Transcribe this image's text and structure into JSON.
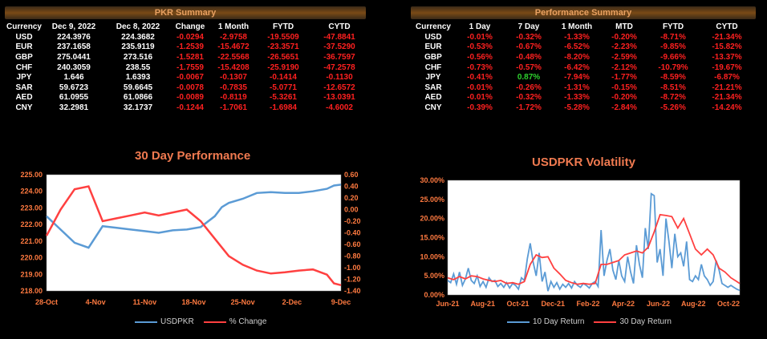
{
  "pkr_summary": {
    "title": "PKR Summary",
    "headers": [
      "Currency",
      "Dec 9, 2022",
      "Dec 8, 2022",
      "Change",
      "1 Month",
      "FYTD",
      "CYTD"
    ],
    "rows": [
      [
        "USD",
        "224.3976",
        "224.3682",
        "-0.0294",
        "-2.9758",
        "-19.5509",
        "-47.8841"
      ],
      [
        "EUR",
        "237.1658",
        "235.9119",
        "-1.2539",
        "-15.4672",
        "-23.3571",
        "-37.5290"
      ],
      [
        "GBP",
        "275.0441",
        "273.516",
        "-1.5281",
        "-22.5568",
        "-26.5651",
        "-36.7597"
      ],
      [
        "CHF",
        "240.3059",
        "238.55",
        "-1.7559",
        "-15.4208",
        "-25.9190",
        "-47.2578"
      ],
      [
        "JPY",
        "1.646",
        "1.6393",
        "-0.0067",
        "-0.1307",
        "-0.1414",
        "-0.1130"
      ],
      [
        "SAR",
        "59.6723",
        "59.6645",
        "-0.0078",
        "-0.7835",
        "-5.0771",
        "-12.6572"
      ],
      [
        "AED",
        "61.0955",
        "61.0866",
        "-0.0089",
        "-0.8119",
        "-5.3261",
        "-13.0391"
      ],
      [
        "CNY",
        "32.2981",
        "32.1737",
        "-0.1244",
        "-1.7061",
        "-1.6984",
        "-4.6002"
      ]
    ]
  },
  "performance_summary": {
    "title": "Performance Summary",
    "headers": [
      "Currency",
      "1 Day",
      "7 Day",
      "1 Month",
      "MTD",
      "FYTD",
      "CYTD"
    ],
    "rows": [
      [
        "USD",
        "-0.01%",
        "-0.32%",
        "-1.33%",
        "-0.20%",
        "-8.71%",
        "-21.34%"
      ],
      [
        "EUR",
        "-0.53%",
        "-0.67%",
        "-6.52%",
        "-2.23%",
        "-9.85%",
        "-15.82%"
      ],
      [
        "GBP",
        "-0.56%",
        "-0.48%",
        "-8.20%",
        "-2.59%",
        "-9.66%",
        "-13.37%"
      ],
      [
        "CHF",
        "-0.73%",
        "-0.57%",
        "-6.42%",
        "-2.12%",
        "-10.79%",
        "-19.67%"
      ],
      [
        "JPY",
        "-0.41%",
        "0.87%",
        "-7.94%",
        "-1.77%",
        "-8.59%",
        "-6.87%"
      ],
      [
        "SAR",
        "-0.01%",
        "-0.26%",
        "-1.31%",
        "-0.15%",
        "-8.51%",
        "-21.21%"
      ],
      [
        "AED",
        "-0.01%",
        "-0.32%",
        "-1.33%",
        "-0.20%",
        "-8.72%",
        "-21.34%"
      ],
      [
        "CNY",
        "-0.39%",
        "-1.72%",
        "-5.28%",
        "-2.84%",
        "-5.26%",
        "-14.24%"
      ]
    ]
  },
  "colors": {
    "accent": "#f07a50",
    "negative": "#ff2020",
    "positive": "#2ed22e",
    "blue_series": "#5b9bd5",
    "red_series": "#ff4040"
  },
  "chart_data": [
    {
      "type": "line",
      "title": "30 Day Performance",
      "x_ticks": [
        "28-Oct",
        "4-Nov",
        "11-Nov",
        "18-Nov",
        "25-Nov",
        "2-Dec",
        "9-Dec"
      ],
      "ylim": [
        218.0,
        225.0
      ],
      "y_ticks": [
        "218.00",
        "219.00",
        "220.00",
        "221.00",
        "222.00",
        "223.00",
        "224.00",
        "225.00"
      ],
      "y2lim": [
        -1.4,
        0.6
      ],
      "y2_ticks": [
        "-1.40",
        "-1.20",
        "-1.00",
        "-0.80",
        "-0.60",
        "-0.40",
        "-0.20",
        "0.00",
        "0.20",
        "0.40",
        "0.60"
      ],
      "series": [
        {
          "name": "USDPKR",
          "axis": "left",
          "color": "#5b9bd5",
          "x": [
            0,
            2,
            4,
            6,
            8,
            10,
            12,
            14,
            16,
            18,
            20,
            22,
            24,
            25,
            26,
            28,
            30,
            32,
            34,
            36,
            38,
            40,
            41,
            42
          ],
          "values": [
            222.5,
            221.7,
            220.9,
            220.6,
            221.9,
            221.8,
            221.7,
            221.6,
            221.5,
            221.65,
            221.7,
            221.85,
            222.5,
            223.05,
            223.3,
            223.55,
            223.9,
            223.95,
            223.9,
            223.9,
            224.0,
            224.15,
            224.35,
            224.4
          ]
        },
        {
          "name": "% Change",
          "axis": "right",
          "color": "#ff4040",
          "x": [
            0,
            2,
            4,
            6,
            8,
            10,
            12,
            14,
            16,
            18,
            20,
            22,
            24,
            26,
            28,
            30,
            32,
            34,
            36,
            38,
            40,
            41,
            42
          ],
          "values": [
            -0.45,
            0.0,
            0.35,
            0.4,
            -0.2,
            -0.15,
            -0.1,
            -0.05,
            -0.1,
            -0.05,
            0.0,
            -0.2,
            -0.5,
            -0.8,
            -0.95,
            -1.05,
            -1.1,
            -1.08,
            -1.05,
            -1.03,
            -1.12,
            -1.27,
            -1.3
          ]
        }
      ]
    },
    {
      "type": "line",
      "title": "USDPKR Volatility",
      "x_ticks": [
        "Jun-21",
        "Aug-21",
        "Oct-21",
        "Dec-21",
        "Feb-22",
        "Apr-22",
        "Jun-22",
        "Aug-22",
        "Oct-22"
      ],
      "ylim": [
        0,
        30
      ],
      "y_ticks": [
        "0.00%",
        "5.00%",
        "10.00%",
        "15.00%",
        "20.00%",
        "25.00%",
        "30.00%"
      ],
      "series": [
        {
          "name": "10 Day Return",
          "color": "#5b9bd5",
          "x": [
            0,
            0.3,
            0.6,
            0.9,
            1.2,
            1.5,
            1.8,
            2.1,
            2.4,
            2.7,
            3.0,
            3.3,
            3.6,
            3.9,
            4.2,
            4.5,
            4.8,
            5.1,
            5.4,
            5.7,
            6.0,
            6.3,
            6.6,
            6.9,
            7.2,
            7.5,
            7.8,
            8.1,
            8.4,
            8.7,
            9.0,
            9.3,
            9.6,
            9.9,
            10.2,
            10.5,
            10.8,
            11.1,
            11.4,
            11.7,
            12.0,
            12.3,
            12.6,
            12.9,
            13.2,
            13.5,
            13.8,
            14.1,
            14.4,
            14.7,
            15.0,
            15.3,
            15.6,
            15.9,
            16.2,
            16.5,
            16.8,
            17.1,
            17.4,
            17.7,
            18.0,
            18.3,
            18.6,
            18.9,
            19.2,
            19.5,
            19.8,
            20.1,
            20.4,
            20.7,
            21.0,
            21.3,
            21.6,
            21.9,
            22.2,
            22.5,
            22.8,
            23.1,
            23.4,
            23.7,
            24.0,
            24.3,
            24.6,
            24.9,
            25.2,
            25.5,
            25.8,
            26.1,
            26.4,
            26.7,
            27.0,
            27.3,
            27.6,
            27.9,
            28.2,
            28.5,
            28.8,
            29.1,
            29.4,
            29.7
          ],
          "values": [
            3.8,
            3.2,
            5.5,
            2.8,
            6.0,
            2.5,
            4.2,
            7.0,
            3.8,
            3.0,
            5.0,
            2.2,
            3.5,
            2.0,
            4.5,
            3.5,
            3.8,
            2.2,
            3.0,
            2.0,
            3.2,
            1.8,
            3.0,
            2.5,
            1.5,
            4.5,
            3.8,
            9.5,
            13.5,
            8.5,
            5.0,
            11.0,
            3.5,
            6.0,
            1.0,
            3.5,
            2.0,
            3.2,
            1.5,
            2.8,
            2.0,
            3.0,
            1.8,
            3.5,
            2.5,
            2.0,
            3.0,
            2.5,
            1.8,
            3.0,
            3.5,
            2.2,
            17.0,
            5.0,
            9.0,
            12.0,
            6.5,
            4.0,
            9.0,
            5.0,
            3.5,
            10.0,
            6.0,
            3.0,
            13.0,
            8.0,
            4.5,
            17.5,
            12.0,
            26.5,
            26.0,
            8.5,
            12.0,
            5.0,
            20.0,
            14.0,
            7.0,
            16.0,
            10.0,
            11.0,
            7.5,
            14.0,
            4.0,
            3.5,
            5.0,
            4.0,
            8.0,
            5.0,
            4.0,
            2.5,
            3.5,
            9.0,
            6.5,
            3.0,
            2.5,
            2.0,
            2.5,
            2.0,
            1.5,
            1.2
          ]
        },
        {
          "name": "30 Day Return",
          "color": "#ff4040",
          "x": [
            0,
            0.6,
            1.2,
            1.8,
            2.4,
            3.0,
            3.6,
            4.2,
            4.8,
            5.4,
            6.0,
            6.6,
            7.2,
            7.8,
            8.4,
            9.0,
            9.6,
            10.2,
            10.8,
            11.4,
            12.0,
            12.6,
            13.2,
            13.8,
            14.4,
            15.0,
            15.6,
            16.2,
            16.8,
            17.4,
            18.0,
            18.6,
            19.2,
            19.8,
            20.4,
            21.0,
            21.6,
            22.2,
            22.8,
            23.4,
            24.0,
            24.6,
            25.2,
            25.8,
            26.4,
            27.0,
            27.6,
            28.2,
            28.8,
            29.4,
            29.7
          ],
          "values": [
            4.5,
            4.0,
            4.8,
            4.2,
            5.0,
            4.8,
            4.2,
            3.8,
            3.5,
            3.8,
            3.0,
            3.2,
            2.8,
            3.5,
            8.0,
            10.5,
            9.8,
            10.0,
            7.0,
            5.5,
            3.8,
            3.2,
            2.8,
            3.0,
            2.8,
            3.0,
            8.0,
            8.0,
            8.5,
            9.0,
            10.5,
            11.0,
            11.5,
            11.0,
            12.5,
            16.5,
            21.0,
            20.8,
            20.5,
            17.5,
            20.0,
            16.0,
            12.0,
            10.5,
            12.0,
            10.5,
            7.0,
            6.0,
            4.5,
            3.5,
            3.0
          ]
        }
      ]
    }
  ]
}
